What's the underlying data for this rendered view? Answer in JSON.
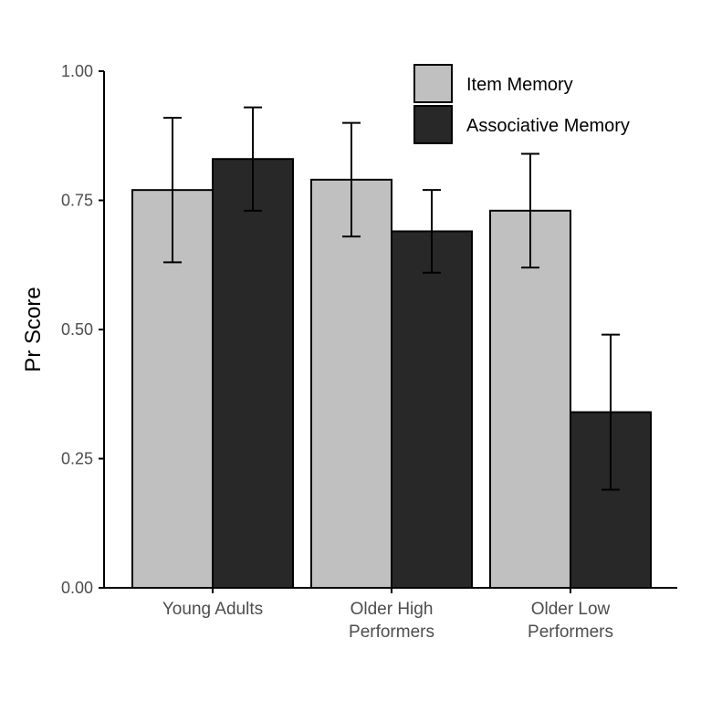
{
  "chart_data": {
    "type": "bar",
    "title": "",
    "xlabel": "",
    "ylabel": "Pr Score",
    "ylim": [
      0,
      1
    ],
    "yticks": [
      "0.00",
      "0.25",
      "0.50",
      "0.75",
      "1.00"
    ],
    "ytick_values": [
      0,
      0.25,
      0.5,
      0.75,
      1.0
    ],
    "categories": [
      [
        "Young Adults"
      ],
      [
        "Older High",
        "Performers"
      ],
      [
        "Older Low",
        "Performers"
      ]
    ],
    "series": [
      {
        "name": "Item Memory",
        "color": "#c0c0c0",
        "values": [
          0.77,
          0.79,
          0.73
        ],
        "error_low": [
          0.63,
          0.68,
          0.62
        ],
        "error_high": [
          0.91,
          0.9,
          0.84
        ]
      },
      {
        "name": "Associative Memory",
        "color": "#282828",
        "values": [
          0.83,
          0.69,
          0.34
        ],
        "error_low": [
          0.73,
          0.61,
          0.19
        ],
        "error_high": [
          0.93,
          0.77,
          0.49
        ]
      }
    ],
    "grid": false,
    "legend_position": "top-right"
  }
}
